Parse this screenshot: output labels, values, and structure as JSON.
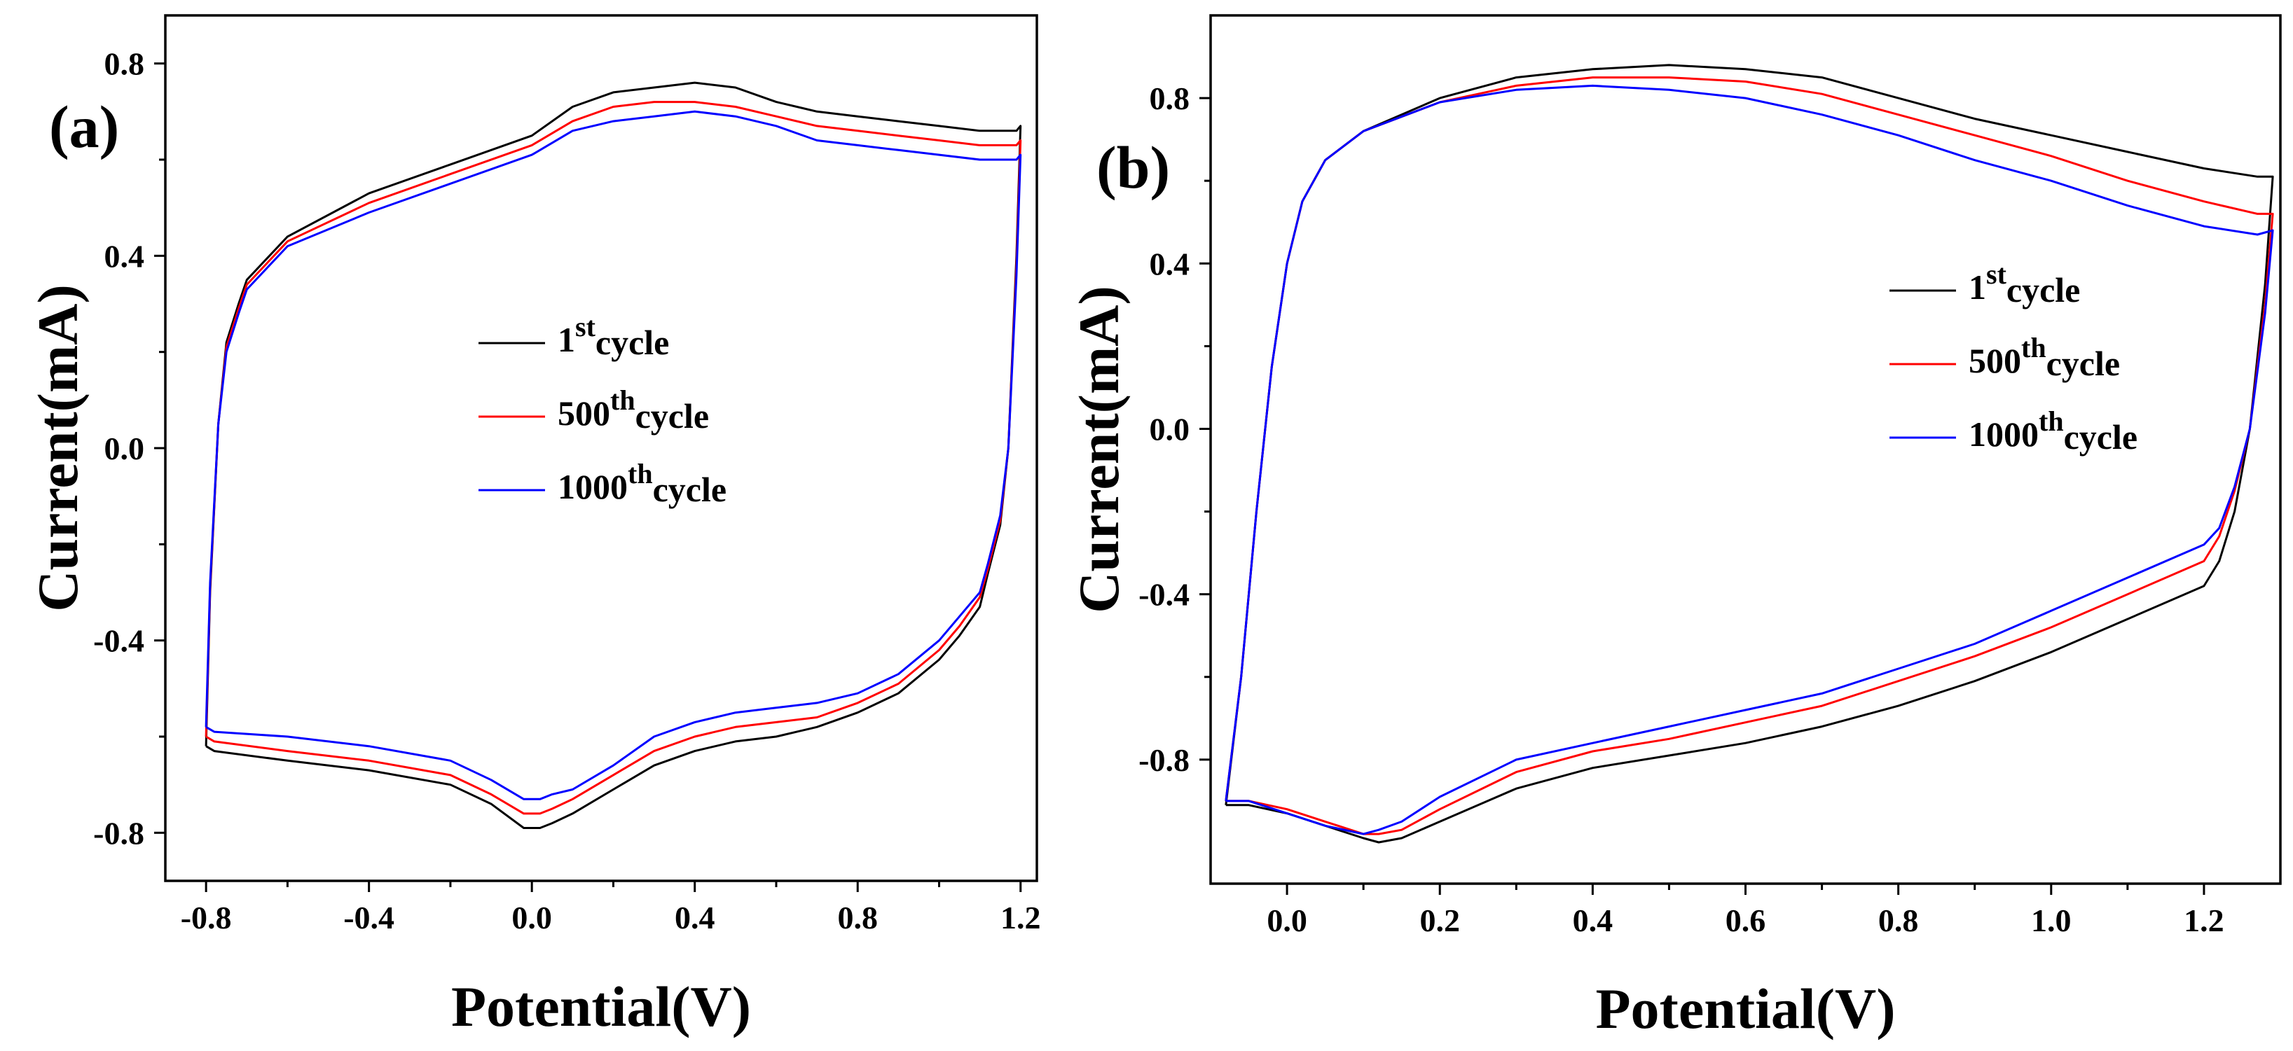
{
  "chart_data": [
    {
      "type": "line",
      "panel_label": "(a)",
      "xlabel": "Potential(V)",
      "ylabel": "Current(mA)",
      "xlim": [
        -0.9,
        1.24
      ],
      "ylim": [
        -0.9,
        0.9
      ],
      "xticks": [
        -0.8,
        -0.4,
        0.0,
        0.4,
        0.8,
        1.2
      ],
      "xtick_labels": [
        "-0.8",
        "-0.4",
        "0.0",
        "0.4",
        "0.8",
        "1.2"
      ],
      "yticks": [
        -0.8,
        -0.4,
        0.0,
        0.4,
        0.8
      ],
      "ytick_labels": [
        "-0.8",
        "-0.4",
        "0.0",
        "0.4",
        "0.8"
      ],
      "legend_position": "center",
      "series": [
        {
          "name": "1st cycle",
          "ordinal": "1",
          "suffix": "st",
          "word": "cycle",
          "color": "#000000",
          "x": [
            -0.8,
            -0.79,
            -0.77,
            -0.75,
            -0.72,
            -0.7,
            -0.6,
            -0.4,
            -0.2,
            0.0,
            0.1,
            0.2,
            0.3,
            0.4,
            0.5,
            0.6,
            0.7,
            0.8,
            0.9,
            1.0,
            1.1,
            1.19,
            1.2,
            1.19,
            1.17,
            1.15,
            1.12,
            1.1,
            1.05,
            1.0,
            0.9,
            0.8,
            0.7,
            0.6,
            0.5,
            0.4,
            0.3,
            0.2,
            0.1,
            0.05,
            0.02,
            -0.02,
            -0.1,
            -0.2,
            -0.4,
            -0.6,
            -0.78,
            -0.8
          ],
          "y": [
            -0.62,
            -0.3,
            0.05,
            0.22,
            0.3,
            0.35,
            0.44,
            0.53,
            0.59,
            0.65,
            0.71,
            0.74,
            0.75,
            0.76,
            0.75,
            0.72,
            0.7,
            0.69,
            0.68,
            0.67,
            0.66,
            0.66,
            0.67,
            0.4,
            0.0,
            -0.16,
            -0.26,
            -0.33,
            -0.39,
            -0.44,
            -0.51,
            -0.55,
            -0.58,
            -0.6,
            -0.61,
            -0.63,
            -0.66,
            -0.71,
            -0.76,
            -0.78,
            -0.79,
            -0.79,
            -0.74,
            -0.7,
            -0.67,
            -0.65,
            -0.63,
            -0.62
          ]
        },
        {
          "name": "500th cycle",
          "ordinal": "500",
          "suffix": "th",
          "word": "cycle",
          "color": "#ff0000",
          "x": [
            -0.8,
            -0.79,
            -0.77,
            -0.75,
            -0.72,
            -0.7,
            -0.6,
            -0.4,
            -0.2,
            0.0,
            0.1,
            0.2,
            0.3,
            0.4,
            0.5,
            0.6,
            0.7,
            0.8,
            0.9,
            1.0,
            1.1,
            1.19,
            1.2,
            1.19,
            1.17,
            1.15,
            1.12,
            1.1,
            1.05,
            1.0,
            0.9,
            0.8,
            0.7,
            0.6,
            0.5,
            0.4,
            0.3,
            0.2,
            0.1,
            0.05,
            0.02,
            -0.02,
            -0.1,
            -0.2,
            -0.4,
            -0.6,
            -0.78,
            -0.8
          ],
          "y": [
            -0.6,
            -0.29,
            0.05,
            0.21,
            0.29,
            0.34,
            0.43,
            0.51,
            0.57,
            0.63,
            0.68,
            0.71,
            0.72,
            0.72,
            0.71,
            0.69,
            0.67,
            0.66,
            0.65,
            0.64,
            0.63,
            0.63,
            0.64,
            0.38,
            0.0,
            -0.15,
            -0.25,
            -0.31,
            -0.37,
            -0.42,
            -0.49,
            -0.53,
            -0.56,
            -0.57,
            -0.58,
            -0.6,
            -0.63,
            -0.68,
            -0.73,
            -0.75,
            -0.76,
            -0.76,
            -0.72,
            -0.68,
            -0.65,
            -0.63,
            -0.61,
            -0.6
          ]
        },
        {
          "name": "1000th cycle",
          "ordinal": "1000",
          "suffix": "th",
          "word": "cycle",
          "color": "#0000ff",
          "x": [
            -0.8,
            -0.79,
            -0.77,
            -0.75,
            -0.72,
            -0.7,
            -0.6,
            -0.4,
            -0.2,
            0.0,
            0.1,
            0.2,
            0.3,
            0.4,
            0.5,
            0.6,
            0.7,
            0.8,
            0.9,
            1.0,
            1.1,
            1.19,
            1.2,
            1.19,
            1.17,
            1.15,
            1.12,
            1.1,
            1.05,
            1.0,
            0.9,
            0.8,
            0.7,
            0.6,
            0.5,
            0.4,
            0.3,
            0.2,
            0.1,
            0.05,
            0.02,
            -0.02,
            -0.1,
            -0.2,
            -0.4,
            -0.6,
            -0.78,
            -0.8
          ],
          "y": [
            -0.58,
            -0.28,
            0.05,
            0.2,
            0.28,
            0.33,
            0.42,
            0.49,
            0.55,
            0.61,
            0.66,
            0.68,
            0.69,
            0.7,
            0.69,
            0.67,
            0.64,
            0.63,
            0.62,
            0.61,
            0.6,
            0.6,
            0.61,
            0.36,
            0.0,
            -0.14,
            -0.24,
            -0.3,
            -0.35,
            -0.4,
            -0.47,
            -0.51,
            -0.53,
            -0.54,
            -0.55,
            -0.57,
            -0.6,
            -0.66,
            -0.71,
            -0.72,
            -0.73,
            -0.73,
            -0.69,
            -0.65,
            -0.62,
            -0.6,
            -0.59,
            -0.58
          ]
        }
      ]
    },
    {
      "type": "line",
      "panel_label": "(b)",
      "xlabel": "Potential(V)",
      "ylabel": "Current(mA)",
      "xlim": [
        -0.1,
        1.3
      ],
      "ylim": [
        -1.1,
        1.0
      ],
      "xticks": [
        0.0,
        0.2,
        0.4,
        0.6,
        0.8,
        1.0,
        1.2
      ],
      "xtick_labels": [
        "0.0",
        "0.2",
        "0.4",
        "0.6",
        "0.8",
        "1.0",
        "1.2"
      ],
      "yticks": [
        -0.8,
        -0.4,
        0.0,
        0.4,
        0.8
      ],
      "ytick_labels": [
        "-0.8",
        "-0.4",
        "0.0",
        "0.4",
        "0.8"
      ],
      "legend_position": "right",
      "series": [
        {
          "name": "1st cycle",
          "ordinal": "1",
          "suffix": "st",
          "word": "cycle",
          "color": "#000000",
          "x": [
            -0.08,
            -0.06,
            -0.04,
            -0.02,
            0.0,
            0.02,
            0.05,
            0.1,
            0.2,
            0.3,
            0.4,
            0.5,
            0.6,
            0.7,
            0.8,
            0.9,
            1.0,
            1.1,
            1.2,
            1.27,
            1.29,
            1.28,
            1.26,
            1.24,
            1.22,
            1.2,
            1.1,
            1.0,
            0.9,
            0.8,
            0.7,
            0.6,
            0.5,
            0.4,
            0.3,
            0.2,
            0.15,
            0.12,
            0.1,
            0.05,
            0.0,
            -0.05,
            -0.08
          ],
          "y": [
            -0.91,
            -0.6,
            -0.2,
            0.15,
            0.4,
            0.55,
            0.65,
            0.72,
            0.8,
            0.85,
            0.87,
            0.88,
            0.87,
            0.85,
            0.8,
            0.75,
            0.71,
            0.67,
            0.63,
            0.61,
            0.61,
            0.35,
            0.0,
            -0.2,
            -0.32,
            -0.38,
            -0.46,
            -0.54,
            -0.61,
            -0.67,
            -0.72,
            -0.76,
            -0.79,
            -0.82,
            -0.87,
            -0.95,
            -0.99,
            -1.0,
            -0.99,
            -0.96,
            -0.93,
            -0.91,
            -0.91
          ]
        },
        {
          "name": "500th cycle",
          "ordinal": "500",
          "suffix": "th",
          "word": "cycle",
          "color": "#ff0000",
          "x": [
            -0.08,
            -0.06,
            -0.04,
            -0.02,
            0.0,
            0.02,
            0.05,
            0.1,
            0.2,
            0.3,
            0.4,
            0.5,
            0.6,
            0.7,
            0.8,
            0.9,
            1.0,
            1.1,
            1.2,
            1.27,
            1.29,
            1.28,
            1.26,
            1.24,
            1.22,
            1.2,
            1.1,
            1.0,
            0.9,
            0.8,
            0.7,
            0.6,
            0.5,
            0.4,
            0.3,
            0.2,
            0.15,
            0.12,
            0.1,
            0.05,
            0.0,
            -0.05,
            -0.08
          ],
          "y": [
            -0.9,
            -0.6,
            -0.2,
            0.15,
            0.4,
            0.55,
            0.65,
            0.72,
            0.79,
            0.83,
            0.85,
            0.85,
            0.84,
            0.81,
            0.76,
            0.71,
            0.66,
            0.6,
            0.55,
            0.52,
            0.52,
            0.3,
            0.0,
            -0.15,
            -0.26,
            -0.32,
            -0.4,
            -0.48,
            -0.55,
            -0.61,
            -0.67,
            -0.71,
            -0.75,
            -0.78,
            -0.83,
            -0.92,
            -0.97,
            -0.98,
            -0.98,
            -0.95,
            -0.92,
            -0.9,
            -0.9
          ]
        },
        {
          "name": "1000th cycle",
          "ordinal": "1000",
          "suffix": "th",
          "word": "cycle",
          "color": "#0000ff",
          "x": [
            -0.08,
            -0.06,
            -0.04,
            -0.02,
            0.0,
            0.02,
            0.05,
            0.1,
            0.2,
            0.3,
            0.4,
            0.5,
            0.6,
            0.7,
            0.8,
            0.9,
            1.0,
            1.1,
            1.2,
            1.27,
            1.29,
            1.28,
            1.26,
            1.24,
            1.22,
            1.2,
            1.1,
            1.0,
            0.9,
            0.8,
            0.7,
            0.6,
            0.5,
            0.4,
            0.3,
            0.2,
            0.15,
            0.12,
            0.1,
            0.05,
            0.0,
            -0.05,
            -0.08
          ],
          "y": [
            -0.9,
            -0.6,
            -0.2,
            0.15,
            0.4,
            0.55,
            0.65,
            0.72,
            0.79,
            0.82,
            0.83,
            0.82,
            0.8,
            0.76,
            0.71,
            0.65,
            0.6,
            0.54,
            0.49,
            0.47,
            0.48,
            0.28,
            0.0,
            -0.14,
            -0.24,
            -0.28,
            -0.36,
            -0.44,
            -0.52,
            -0.58,
            -0.64,
            -0.68,
            -0.72,
            -0.76,
            -0.8,
            -0.89,
            -0.95,
            -0.97,
            -0.98,
            -0.96,
            -0.93,
            -0.9,
            -0.9
          ]
        }
      ]
    }
  ]
}
